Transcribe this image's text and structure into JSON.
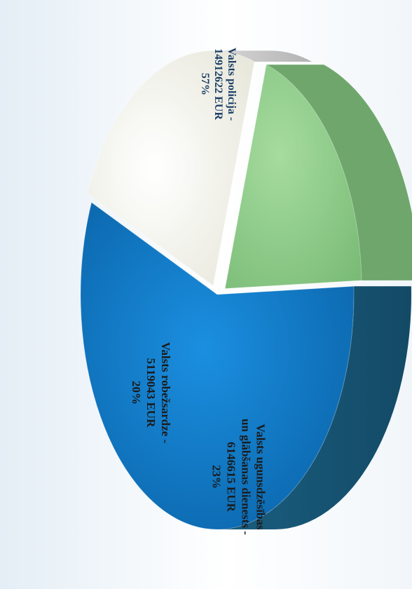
{
  "chart_data": {
    "type": "pie",
    "style": "3d",
    "orientation": "rotated-90-clockwise",
    "series": [
      {
        "categories": [
          "Valsts policija",
          "Valsts ugunsdzēsības un glābšanas dienests",
          "Valsts robežsardze"
        ],
        "values": [
          14912622,
          6146615,
          5119043
        ],
        "percent": [
          57,
          23,
          20
        ],
        "unit": "EUR"
      }
    ],
    "colors": [
      "#0f78c4",
      "#f7f7ef",
      "#8fcf8a"
    ],
    "side_colors": [
      "#1d5674",
      "#c4c4c4",
      "#6fa66c"
    ],
    "labels": [
      {
        "lines": [
          "Valsts policija -",
          "14912622 EUR",
          "57%"
        ]
      },
      {
        "lines": [
          "Valsts ugunsdzēsības",
          "un glābšanas dienests -",
          "6146615 EUR",
          "23%"
        ]
      },
      {
        "lines": [
          "Valsts robežsardze -",
          "5119043 EUR",
          "20%"
        ]
      }
    ]
  }
}
